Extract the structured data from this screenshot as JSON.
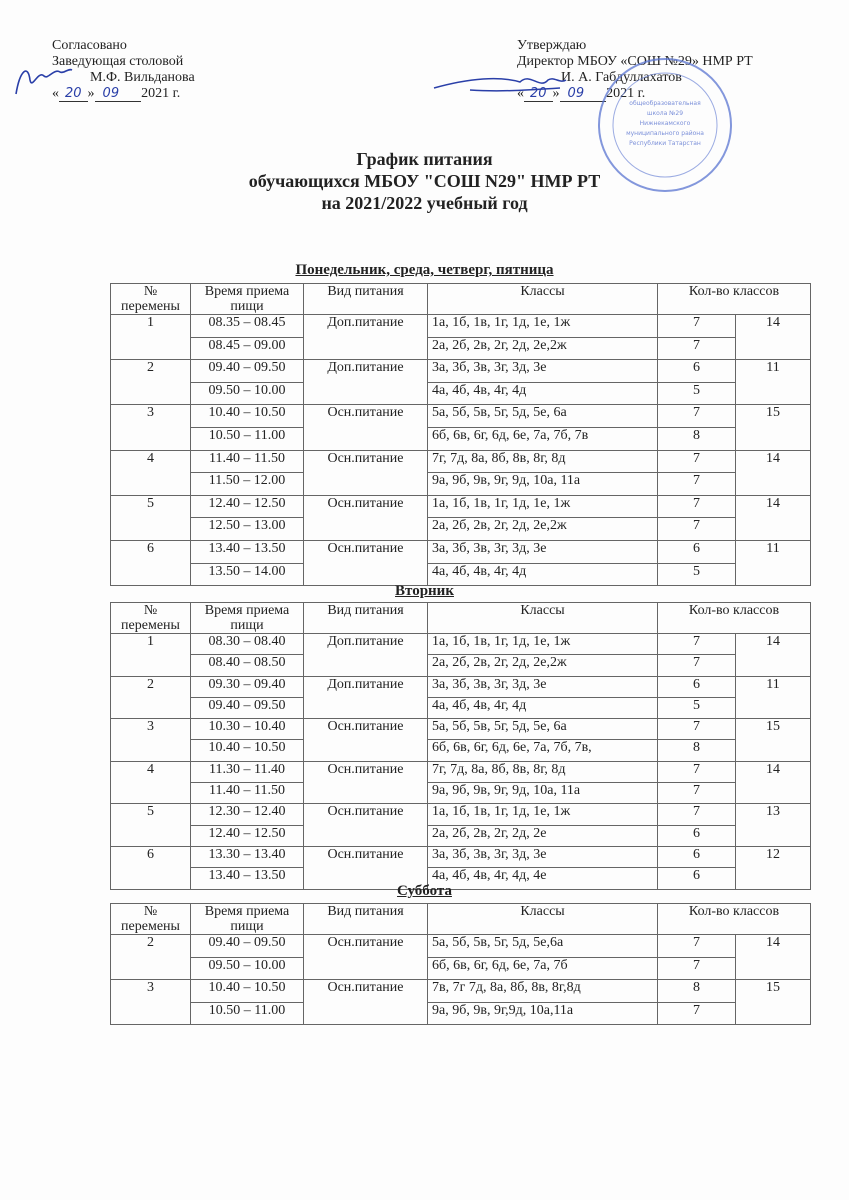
{
  "header_left": {
    "line1": "Согласовано",
    "line2": "Заведующая столовой",
    "line3": "М.Ф. Вильданова",
    "date_prefix": "«",
    "day": "20",
    "date_mid": "»",
    "month": "09",
    "year": "2021 г."
  },
  "header_right": {
    "line1": "Утверждаю",
    "line2": "Директор МБОУ «СОШ №29» НМР РТ",
    "line3": "И. А. Габдуллахатов",
    "date_prefix": "«",
    "day": "20",
    "date_mid": "»",
    "month": "09",
    "year": "2021 г."
  },
  "stamp_text": "муниципальное бюджетное общеобразовательное учреждение средняя общеобразовательная школа №29 Нижнекамского муниципального района Республики Татарстан",
  "stamp_color": "#3b5bc8",
  "title": {
    "line1": "График питания",
    "line2": "обучающихся МБОУ \"СОШ N29\" НМР РТ",
    "line3": "на 2021/2022 учебный  год"
  },
  "columns": {
    "num": "№ перемены",
    "time": "Время приема пищи",
    "type": "Вид питания",
    "classes": "Классы",
    "count": "Кол-во классов"
  },
  "sections": [
    {
      "title": "Понедельник, среда, четверг, пятница",
      "breaks": [
        {
          "num": "1",
          "type": "Доп.питание",
          "total": "14",
          "slots": [
            {
              "time": "08.35 – 08.45",
              "classes": "1а, 1б, 1в, 1г, 1д, 1е, 1ж",
              "count": "7"
            },
            {
              "time": "08.45 – 09.00",
              "classes": "2а, 2б, 2в, 2г, 2д, 2е,2ж",
              "count": "7"
            }
          ]
        },
        {
          "num": "2",
          "type": "Доп.питание",
          "total": "11",
          "slots": [
            {
              "time": "09.40 – 09.50",
              "classes": "3а, 3б, 3в, 3г, 3д, 3е",
              "count": "6"
            },
            {
              "time": "09.50 – 10.00",
              "classes": "4а, 4б, 4в, 4г, 4д",
              "count": "5"
            }
          ]
        },
        {
          "num": "3",
          "type": "Осн.питание",
          "total": "15",
          "slots": [
            {
              "time": "10.40 – 10.50",
              "classes": "5а, 5б, 5в, 5г, 5д, 5е, 6а",
              "count": "7"
            },
            {
              "time": "10.50 – 11.00",
              "classes": "6б, 6в, 6г, 6д, 6е, 7а, 7б, 7в",
              "count": "8"
            }
          ]
        },
        {
          "num": "4",
          "type": "Осн.питание",
          "total": "14",
          "slots": [
            {
              "time": "11.40 – 11.50",
              "classes": "7г, 7д, 8а, 8б, 8в, 8г, 8д",
              "count": "7"
            },
            {
              "time": "11.50 – 12.00",
              "classes": "9а, 9б, 9в, 9г, 9д, 10а, 11а",
              "count": "7"
            }
          ]
        },
        {
          "num": "5",
          "type": "Осн.питание",
          "total": "14",
          "slots": [
            {
              "time": "12.40 – 12.50",
              "classes": "1а, 1б, 1в, 1г, 1д, 1е, 1ж",
              "count": "7"
            },
            {
              "time": "12.50 – 13.00",
              "classes": "2а, 2б, 2в, 2г, 2д, 2е,2ж",
              "count": "7"
            }
          ]
        },
        {
          "num": "6",
          "type": "Осн.питание",
          "total": "11",
          "slots": [
            {
              "time": "13.40 – 13.50",
              "classes": "3а, 3б, 3в, 3г, 3д, 3е",
              "count": "6"
            },
            {
              "time": "13.50 – 14.00",
              "classes": "4а, 4б, 4в, 4г, 4д",
              "count": "5"
            }
          ]
        }
      ]
    },
    {
      "title": "Вторник",
      "breaks": [
        {
          "num": "1",
          "type": "Доп.питание",
          "total": "14",
          "slots": [
            {
              "time": "08.30 – 08.40",
              "classes": "1а, 1б, 1в, 1г, 1д, 1е, 1ж",
              "count": "7"
            },
            {
              "time": "08.40 – 08.50",
              "classes": "2а, 2б, 2в, 2г, 2д, 2е,2ж",
              "count": "7"
            }
          ]
        },
        {
          "num": "2",
          "type": "Доп.питание",
          "total": "11",
          "slots": [
            {
              "time": "09.30 – 09.40",
              "classes": "3а, 3б, 3в, 3г, 3д, 3е",
              "count": "6"
            },
            {
              "time": "09.40 – 09.50",
              "classes": "4а, 4б, 4в, 4г, 4д",
              "count": "5"
            }
          ]
        },
        {
          "num": "3",
          "type": "Осн.питание",
          "total": "15",
          "slots": [
            {
              "time": "10.30 – 10.40",
              "classes": "5а, 5б, 5в, 5г, 5д, 5е, 6а",
              "count": "7"
            },
            {
              "time": "10.40 – 10.50",
              "classes": "6б, 6в, 6г, 6д, 6е, 7а, 7б, 7в,",
              "count": "8"
            }
          ]
        },
        {
          "num": "4",
          "type": "Осн.питание",
          "total": "14",
          "slots": [
            {
              "time": "11.30 – 11.40",
              "classes": "7г, 7д, 8а, 8б, 8в, 8г, 8д",
              "count": "7"
            },
            {
              "time": "11.40 – 11.50",
              "classes": "9а, 9б, 9в, 9г, 9д, 10а, 11а",
              "count": "7"
            }
          ]
        },
        {
          "num": "5",
          "type": "Осн.питание",
          "total": "13",
          "slots": [
            {
              "time": "12.30 – 12.40",
              "classes": "1а, 1б, 1в, 1г, 1д, 1е, 1ж",
              "count": "7"
            },
            {
              "time": "12.40 – 12.50",
              "classes": "2а, 2б, 2в, 2г, 2д, 2е",
              "count": "6"
            }
          ]
        },
        {
          "num": "6",
          "type": "Осн.питание",
          "total": "12",
          "slots": [
            {
              "time": "13.30 – 13.40",
              "classes": "3а, 3б, 3в, 3г, 3д, 3е",
              "count": "6"
            },
            {
              "time": "13.40 – 13.50",
              "classes": "4а, 4б, 4в, 4г, 4д, 4е",
              "count": "6"
            }
          ]
        }
      ]
    },
    {
      "title": "Суббота",
      "breaks": [
        {
          "num": "2",
          "type": "Осн.питание",
          "total": "14",
          "slots": [
            {
              "time": "09.40 – 09.50",
              "classes": "5а, 5б, 5в, 5г, 5д, 5е,6а",
              "count": "7"
            },
            {
              "time": "09.50 – 10.00",
              "classes": "6б, 6в, 6г, 6д, 6е, 7а, 7б",
              "count": "7"
            }
          ]
        },
        {
          "num": "3",
          "type": "Осн.питание",
          "total": "15",
          "slots": [
            {
              "time": "10.40 – 10.50",
              "classes": "7в, 7г 7д, 8а, 8б, 8в, 8г,8д",
              "count": "8"
            },
            {
              "time": "10.50 – 11.00",
              "classes": " 9а, 9б, 9в, 9г,9д, 10а,11а",
              "count": "7"
            }
          ]
        }
      ]
    }
  ]
}
